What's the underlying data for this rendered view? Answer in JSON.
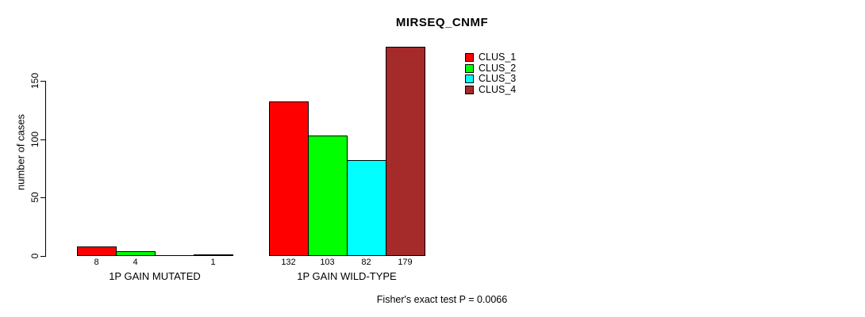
{
  "chart_data": {
    "type": "bar",
    "title": "MIRSEQ_CNMF",
    "ylabel": "number of cases",
    "xlabel": "",
    "footer": "Fisher's exact test P = 0.0066",
    "yticks": [
      "0",
      "50",
      "100",
      "150"
    ],
    "ytick_values": [
      0,
      50,
      100,
      150
    ],
    "ylim": [
      0,
      185
    ],
    "grid": false,
    "legend_position": "top-right-inside",
    "categories": [
      "1P GAIN MUTATED",
      "1P GAIN WILD-TYPE"
    ],
    "series": [
      {
        "name": "CLUS_1",
        "color": "#ff0000",
        "values": [
          8,
          132
        ]
      },
      {
        "name": "CLUS_2",
        "color": "#00ff00",
        "values": [
          4,
          103
        ]
      },
      {
        "name": "CLUS_3",
        "color": "#00ffff",
        "values": [
          0,
          82
        ]
      },
      {
        "name": "CLUS_4",
        "color": "#a52a2a",
        "values": [
          1,
          179
        ]
      }
    ],
    "bar_value_labels": [
      [
        "8",
        "4",
        "",
        "1"
      ],
      [
        "132",
        "103",
        "82",
        "179"
      ]
    ]
  }
}
